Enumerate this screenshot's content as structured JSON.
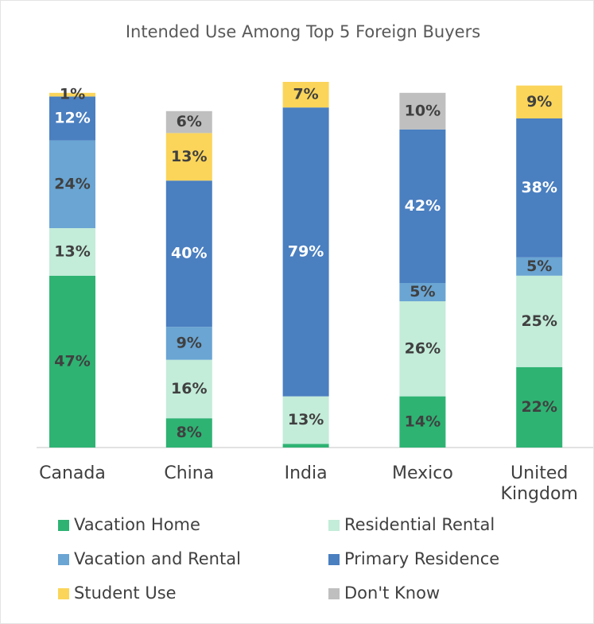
{
  "chart_data": {
    "type": "stacked_bar",
    "title": "Intended Use Among Top 5 Foreign Buyers",
    "categories": [
      "Canada",
      "China",
      "India",
      "Mexico",
      "United Kingdom"
    ],
    "ylim": [
      0,
      100
    ],
    "series": [
      {
        "name": "Vacation Home",
        "color": "#2eb373",
        "values": [
          47,
          8,
          1,
          14,
          22
        ],
        "value_labels": [
          "47%",
          "8%",
          null,
          "14%",
          "22%"
        ]
      },
      {
        "name": "Residential Rental",
        "color": "#c3ecd9",
        "values": [
          13,
          16,
          13,
          26,
          25
        ],
        "value_labels": [
          "13%",
          "16%",
          "13%",
          "26%",
          "25%"
        ]
      },
      {
        "name": "Vacation and Rental",
        "color": "#6aa5d3",
        "values": [
          24,
          9,
          null,
          5,
          5
        ],
        "value_labels": [
          "24%",
          "9%",
          null,
          "5%",
          "5%"
        ]
      },
      {
        "name": "Primary Residence",
        "color": "#4a7fc0",
        "values": [
          12,
          40,
          79,
          42,
          38
        ],
        "value_labels": [
          "12%",
          "40%",
          "79%",
          "42%",
          "38%"
        ]
      },
      {
        "name": "Student Use",
        "color": "#fbd55a",
        "values": [
          1,
          13,
          7,
          null,
          9
        ],
        "value_labels": [
          "1%",
          "13%",
          "7%",
          null,
          "9%"
        ]
      },
      {
        "name": "Don't Know",
        "color": "#bfbfbf",
        "values": [
          null,
          6,
          null,
          10,
          null
        ],
        "value_labels": [
          null,
          "6%",
          null,
          "10%",
          null
        ]
      }
    ]
  }
}
